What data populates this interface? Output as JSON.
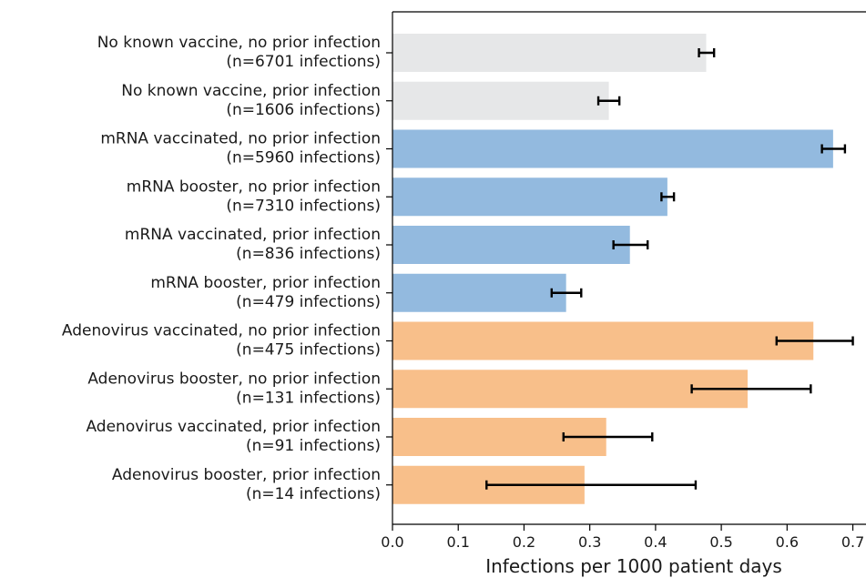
{
  "chart_data": {
    "type": "bar",
    "orientation": "horizontal",
    "title": "",
    "xlabel": "Infections per 1000 patient days",
    "ylabel": "",
    "xlim": [
      0,
      0.72
    ],
    "xticks": [
      "0.0",
      "0.1",
      "0.2",
      "0.3",
      "0.4",
      "0.5",
      "0.6",
      "0.7"
    ],
    "grid": false,
    "legend": null,
    "categories": [
      {
        "line1": "No known vaccine, no prior infection",
        "line2": "(n=6701 infections)"
      },
      {
        "line1": "No known vaccine, prior infection",
        "line2": "(n=1606 infections)"
      },
      {
        "line1": "mRNA vaccinated, no prior infection",
        "line2": "(n=5960 infections)"
      },
      {
        "line1": "mRNA booster, no prior infection",
        "line2": "(n=7310 infections)"
      },
      {
        "line1": "mRNA vaccinated, prior infection",
        "line2": "(n=836 infections)"
      },
      {
        "line1": "mRNA booster, prior infection",
        "line2": "(n=479 infections)"
      },
      {
        "line1": "Adenovirus vaccinated, no prior infection",
        "line2": "(n=475 infections)"
      },
      {
        "line1": "Adenovirus booster, no prior infection",
        "line2": "(n=131 infections)"
      },
      {
        "line1": "Adenovirus vaccinated, prior infection",
        "line2": "(n=91 infections)"
      },
      {
        "line1": "Adenovirus booster, prior infection",
        "line2": "(n=14 infections)"
      }
    ],
    "values": [
      0.477,
      0.329,
      0.67,
      0.418,
      0.361,
      0.264,
      0.64,
      0.54,
      0.325,
      0.292
    ],
    "error_low": [
      0.466,
      0.313,
      0.653,
      0.409,
      0.336,
      0.242,
      0.584,
      0.455,
      0.26,
      0.143
    ],
    "error_high": [
      0.489,
      0.345,
      0.688,
      0.428,
      0.388,
      0.287,
      0.7,
      0.636,
      0.395,
      0.461
    ],
    "colors": [
      "#e6e7e8",
      "#e6e7e8",
      "#93badf",
      "#93badf",
      "#93badf",
      "#93badf",
      "#f8bf8a",
      "#f8bf8a",
      "#f8bf8a",
      "#f8bf8a"
    ],
    "error_color": "#000000"
  }
}
